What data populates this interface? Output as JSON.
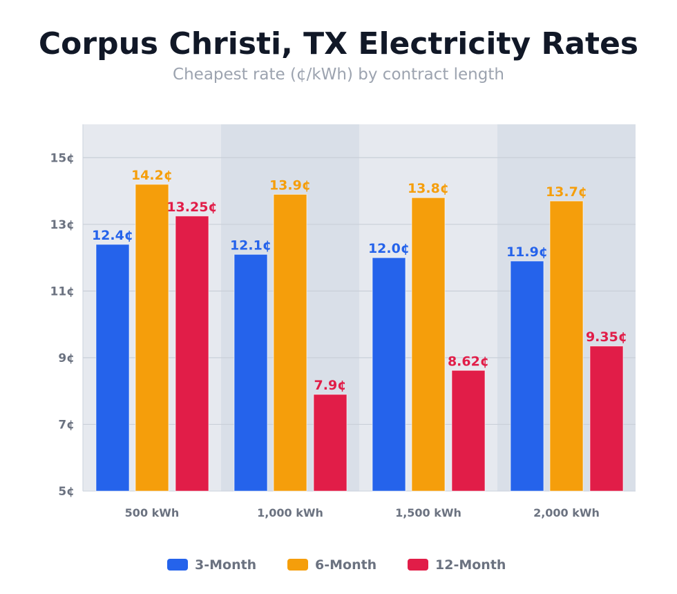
{
  "chart_data": {
    "type": "bar",
    "title": "Corpus Christi, TX Electricity Rates",
    "subtitle": "Cheapest rate (¢/kWh) by contract length",
    "xlabel": "",
    "ylabel": "",
    "categories": [
      "500 kWh",
      "1,000 kWh",
      "1,500 kWh",
      "2,000 kWh"
    ],
    "series": [
      {
        "name": "3-Month",
        "color": "#2563eb",
        "values": [
          12.4,
          12.1,
          12.0,
          11.9
        ],
        "labels": [
          "12.4¢",
          "12.1¢",
          "12.0¢",
          "11.9¢"
        ]
      },
      {
        "name": "6-Month",
        "color": "#f59e0b",
        "values": [
          14.2,
          13.9,
          13.8,
          13.7
        ],
        "labels": [
          "14.2¢",
          "13.9¢",
          "13.8¢",
          "13.7¢"
        ]
      },
      {
        "name": "12-Month",
        "color": "#e11d48",
        "values": [
          13.25,
          7.9,
          8.62,
          9.35
        ],
        "labels": [
          "13.25¢",
          "7.9¢",
          "8.62¢",
          "9.35¢"
        ]
      }
    ],
    "ylim": [
      5,
      16
    ],
    "yticks": [
      5,
      7,
      9,
      11,
      13,
      15
    ],
    "ytick_labels": [
      "5¢",
      "7¢",
      "9¢",
      "11¢",
      "13¢",
      "15¢"
    ],
    "grid": true,
    "legend": "bottom",
    "band_colors": [
      "#e6e9ef",
      "#d9dfe8"
    ]
  }
}
